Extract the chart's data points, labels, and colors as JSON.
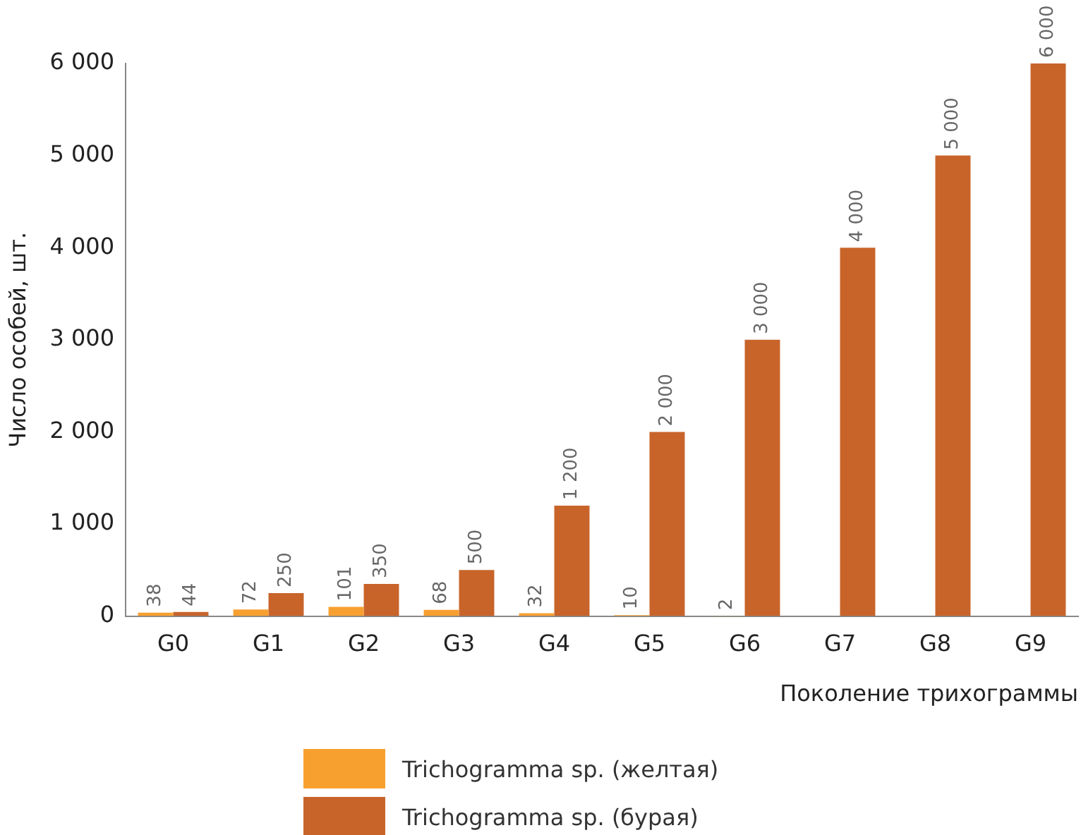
{
  "chart_data": {
    "type": "bar",
    "xlabel": "Поколение трихограммы",
    "ylabel": "Число особей, шт.",
    "categories": [
      "G0",
      "G1",
      "G2",
      "G3",
      "G4",
      "G5",
      "G6",
      "G7",
      "G8",
      "G9"
    ],
    "series": [
      {
        "name": "Trichogramma sp. (желтая)",
        "color": "#f7a030",
        "values": [
          38,
          72,
          101,
          68,
          32,
          10,
          2,
          null,
          null,
          null
        ],
        "value_labels": [
          "38",
          "72",
          "101",
          "68",
          "32",
          "10",
          "2",
          null,
          null,
          null
        ]
      },
      {
        "name": "Trichogramma sp. (бурая)",
        "color": "#c8642a",
        "values": [
          44,
          250,
          350,
          500,
          1200,
          2000,
          3000,
          4000,
          5000,
          6000
        ],
        "value_labels": [
          "44",
          "250",
          "350",
          "500",
          "1 200",
          "2 000",
          "3 000",
          "4 000",
          "5 000",
          "6 000"
        ]
      }
    ],
    "ylim": [
      0,
      6000
    ],
    "yticks": [
      0,
      {
        "value": 1000,
        "label": "1 000"
      },
      {
        "value": 2000,
        "label": "2 000"
      },
      {
        "value": 3000,
        "label": "3 000"
      },
      {
        "value": 4000,
        "label": "4 000"
      },
      {
        "value": 5000,
        "label": "5 000"
      },
      {
        "value": 6000,
        "label": "6 000"
      }
    ],
    "grid": false,
    "legend": "bottom"
  }
}
